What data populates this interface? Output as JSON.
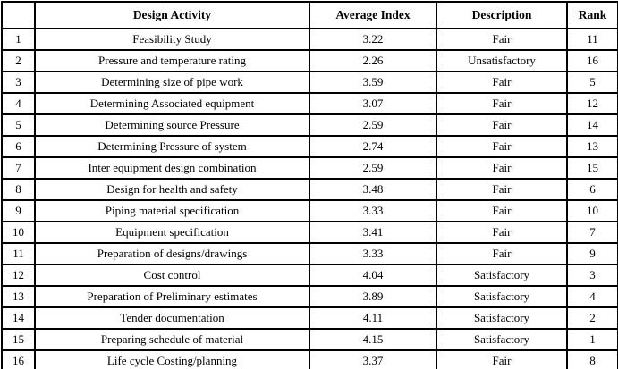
{
  "colors": {
    "border": "#000000",
    "text": "#000000",
    "background": "#ffffff"
  },
  "table": {
    "column_keys": [
      "number",
      "design-activity",
      "average-index",
      "description",
      "rank"
    ],
    "headers": [
      "",
      "Design Activity",
      "Average Index",
      "Description",
      "Rank"
    ],
    "rows": [
      [
        "1",
        "Feasibility Study",
        "3.22",
        "Fair",
        "11"
      ],
      [
        "2",
        "Pressure and temperature rating",
        "2.26",
        "Unsatisfactory",
        "16"
      ],
      [
        "3",
        "Determining size of pipe work",
        "3.59",
        "Fair",
        "5"
      ],
      [
        "4",
        "Determining Associated equipment",
        "3.07",
        "Fair",
        "12"
      ],
      [
        "5",
        "Determining source Pressure",
        "2.59",
        "Fair",
        "14"
      ],
      [
        "6",
        "Determining Pressure of system",
        "2.74",
        "Fair",
        "13"
      ],
      [
        "7",
        "Inter equipment design combination",
        "2.59",
        "Fair",
        "15"
      ],
      [
        "8",
        "Design for health and safety",
        "3.48",
        "Fair",
        "6"
      ],
      [
        "9",
        "Piping material specification",
        "3.33",
        "Fair",
        "10"
      ],
      [
        "10",
        "Equipment specification",
        "3.41",
        "Fair",
        "7"
      ],
      [
        "11",
        "Preparation of designs/drawings",
        "3.33",
        "Fair",
        "9"
      ],
      [
        "12",
        "Cost control",
        "4.04",
        "Satisfactory",
        "3"
      ],
      [
        "13",
        "Preparation of Preliminary estimates",
        "3.89",
        "Satisfactory",
        "4"
      ],
      [
        "14",
        "Tender documentation",
        "4.11",
        "Satisfactory",
        "2"
      ],
      [
        "15",
        "Preparing schedule of material",
        "4.15",
        "Satisfactory",
        "1"
      ],
      [
        "16",
        "Life cycle Costing/planning",
        "3.37",
        "Fair",
        "8"
      ]
    ]
  }
}
